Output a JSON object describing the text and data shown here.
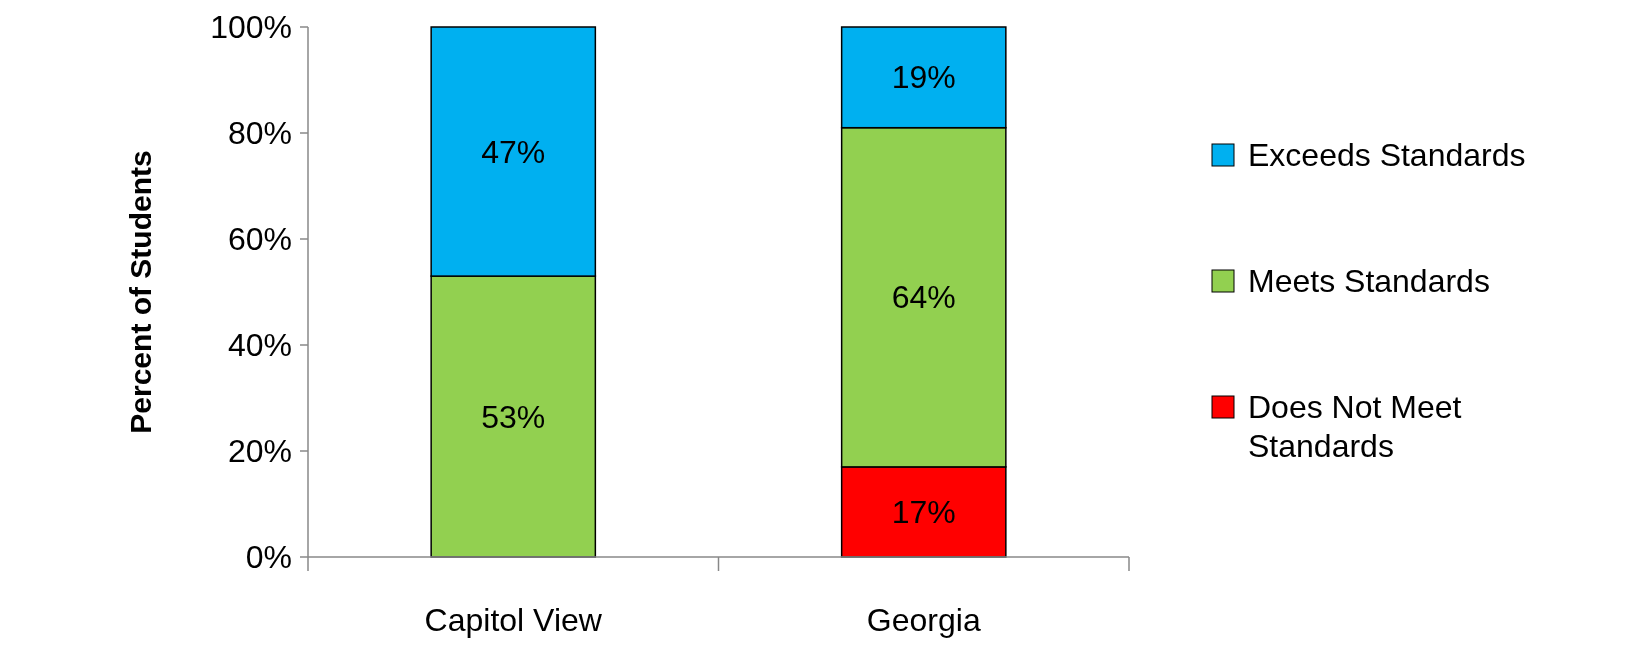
{
  "chart_data": {
    "type": "bar",
    "stacked": true,
    "ylabel": "Percent of Students",
    "categories": [
      "Capitol View",
      "Georgia"
    ],
    "series": [
      {
        "name": "Does Not Meet Standards",
        "color": "#ff0000",
        "values": [
          0,
          17
        ],
        "value_labels": [
          null,
          "17%"
        ]
      },
      {
        "name": "Meets Standards",
        "color": "#92d050",
        "values": [
          53,
          64
        ],
        "value_labels": [
          "53%",
          "64%"
        ]
      },
      {
        "name": "Exceeds Standards",
        "color": "#00b0f0",
        "values": [
          47,
          19
        ],
        "value_labels": [
          "47%",
          "19%"
        ]
      }
    ],
    "ylim": [
      0,
      100
    ],
    "yticks": [
      {
        "value": 0,
        "label": "0%"
      },
      {
        "value": 20,
        "label": "20%"
      },
      {
        "value": 40,
        "label": "40%"
      },
      {
        "value": 60,
        "label": "60%"
      },
      {
        "value": 80,
        "label": "80%"
      },
      {
        "value": 100,
        "label": "100%"
      }
    ],
    "grid": false,
    "legend": "right"
  }
}
